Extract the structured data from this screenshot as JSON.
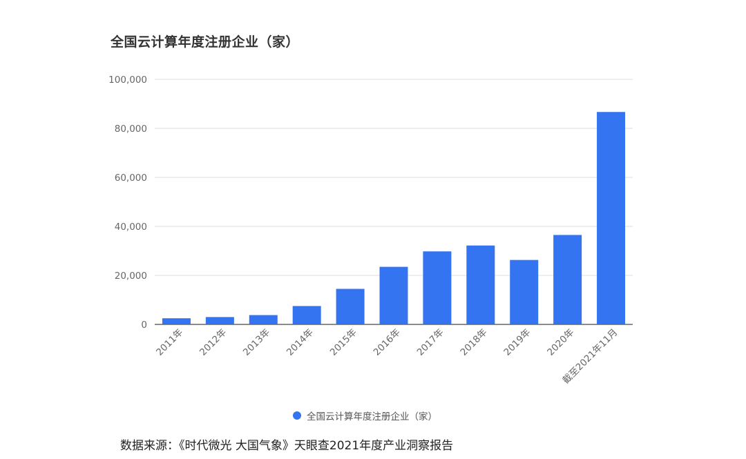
{
  "chart_data": {
    "type": "bar",
    "title": "全国云计算年度注册企业（家）",
    "categories": [
      "2011年",
      "2012年",
      "2013年",
      "2014年",
      "2015年",
      "2016年",
      "2017年",
      "2018年",
      "2019年",
      "2020年",
      "截至2021年11月"
    ],
    "series": [
      {
        "name": "全国云计算年度注册企业（家）",
        "values": [
          2500,
          3000,
          3800,
          7500,
          14500,
          23500,
          29800,
          32200,
          26300,
          36500,
          86700
        ],
        "color": "#3574f0"
      }
    ],
    "y_ticks": [
      "0",
      "20,000",
      "40,000",
      "60,000",
      "80,000",
      "100,000"
    ],
    "ylim": [
      0,
      100000
    ],
    "xlabel": "",
    "ylabel": "",
    "grid": true,
    "legend_position": "bottom"
  },
  "footer": {
    "source": "数据来源：《时代微光 大国气象》天眼查2021年度产业洞察报告"
  }
}
